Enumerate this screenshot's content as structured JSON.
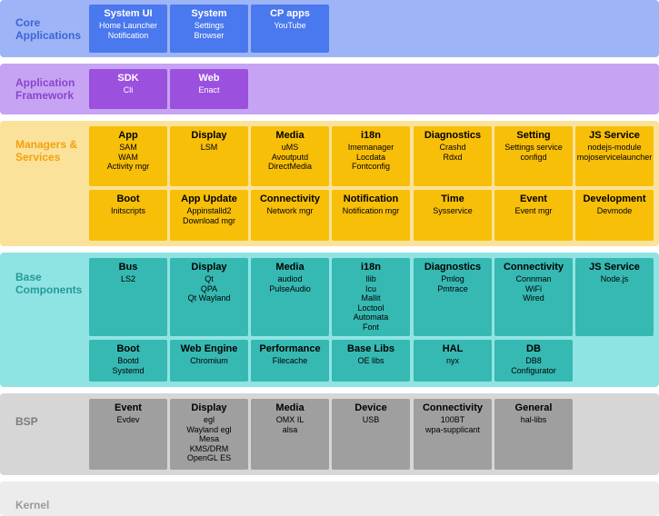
{
  "colors": {
    "core_bg": "#9db5f6",
    "core_box": "#4a78ee",
    "core_text": "#3d64d6",
    "framework_bg": "#c7a3f4",
    "framework_box": "#9b50de",
    "framework_text": "#8a44cc",
    "managers_bg": "#fbe29b",
    "managers_box": "#f8bf08",
    "managers_text": "#f3a10a",
    "base_bg": "#8fe4e3",
    "base_box": "#36b9b2",
    "base_text": "#259a96",
    "bsp_bg": "#d6d6d6",
    "bsp_box": "#9f9f9f",
    "bsp_text": "#7c7c7c",
    "kernel_bg": "#ececec",
    "kernel_text": "#999999"
  },
  "layers": {
    "core": {
      "label": "Core\nApplications",
      "boxes": [
        {
          "title": "System UI",
          "items": "Home Launcher\nNotification"
        },
        {
          "title": "System",
          "items": "Settings\nBrowser"
        },
        {
          "title": "CP apps",
          "items": "YouTube"
        }
      ]
    },
    "framework": {
      "label": "Application\nFramework",
      "boxes": [
        {
          "title": "SDK",
          "items": "Cli"
        },
        {
          "title": "Web",
          "items": "Enact"
        }
      ]
    },
    "managers": {
      "label": "Managers &\nServices",
      "row1": [
        {
          "title": "App",
          "items": "SAM\nWAM\nActivity mgr"
        },
        {
          "title": "Display",
          "items": "LSM"
        },
        {
          "title": "Media",
          "items": "uMS\nAvoutputd\nDirectMedia"
        },
        {
          "title": "i18n",
          "items": "Imemanager\nLocdata\nFontconfig"
        },
        {
          "title": "Diagnostics",
          "items": "Crashd\nRdxd"
        },
        {
          "title": "Setting",
          "items": "Settings service\nconfigd"
        },
        {
          "title": "JS Service",
          "items": "nodejs-module\nmojoservicelauncher"
        }
      ],
      "row2": [
        {
          "title": "Boot",
          "items": "Initscripts"
        },
        {
          "title": "App Update",
          "items": "Appinstalld2\nDownload mgr"
        },
        {
          "title": "Connectivity",
          "items": "Network mgr"
        },
        {
          "title": "Notification",
          "items": "Notification mgr"
        },
        {
          "title": "Time",
          "items": "Sysservice"
        },
        {
          "title": "Event",
          "items": "Event mgr"
        },
        {
          "title": "Development",
          "items": "Devmode"
        }
      ]
    },
    "base": {
      "label": "Base\nComponents",
      "row1": [
        {
          "title": "Bus",
          "items": "LS2"
        },
        {
          "title": "Display",
          "items": "Qt\nQPA\nQt Wayland"
        },
        {
          "title": "Media",
          "items": "audiod\nPulseAudio"
        },
        {
          "title": "i18n",
          "items": "Ilib\nIcu\nMallit\nLoctool\nAutomata\nFont"
        },
        {
          "title": "Diagnostics",
          "items": "Pmlog\nPmtrace"
        },
        {
          "title": "Connectivity",
          "items": "Connman\nWiFi\nWired"
        },
        {
          "title": "JS Service",
          "items": "Node.js"
        }
      ],
      "row2": [
        {
          "title": "Boot",
          "items": "Bootd\nSystemd"
        },
        {
          "title": "Web Engine",
          "items": "Chromium"
        },
        {
          "title": "Performance",
          "items": "Filecache"
        },
        {
          "title": "Base Libs",
          "items": "OE libs"
        },
        {
          "title": "HAL",
          "items": "nyx"
        },
        {
          "title": "DB",
          "items": "DB8\nConfigurator"
        }
      ]
    },
    "bsp": {
      "label": "BSP",
      "boxes": [
        {
          "title": "Event",
          "items": "Evdev"
        },
        {
          "title": "Display",
          "items": "egl\nWayland egl\nMesa\nKMS/DRM\nOpenGL ES"
        },
        {
          "title": "Media",
          "items": "OMX IL\nalsa"
        },
        {
          "title": "Device",
          "items": "USB"
        },
        {
          "title": "Connectivity",
          "items": "100BT\nwpa-supplicant"
        },
        {
          "title": "General",
          "items": "hal-libs"
        }
      ]
    },
    "kernel": {
      "label": "Kernel"
    }
  }
}
